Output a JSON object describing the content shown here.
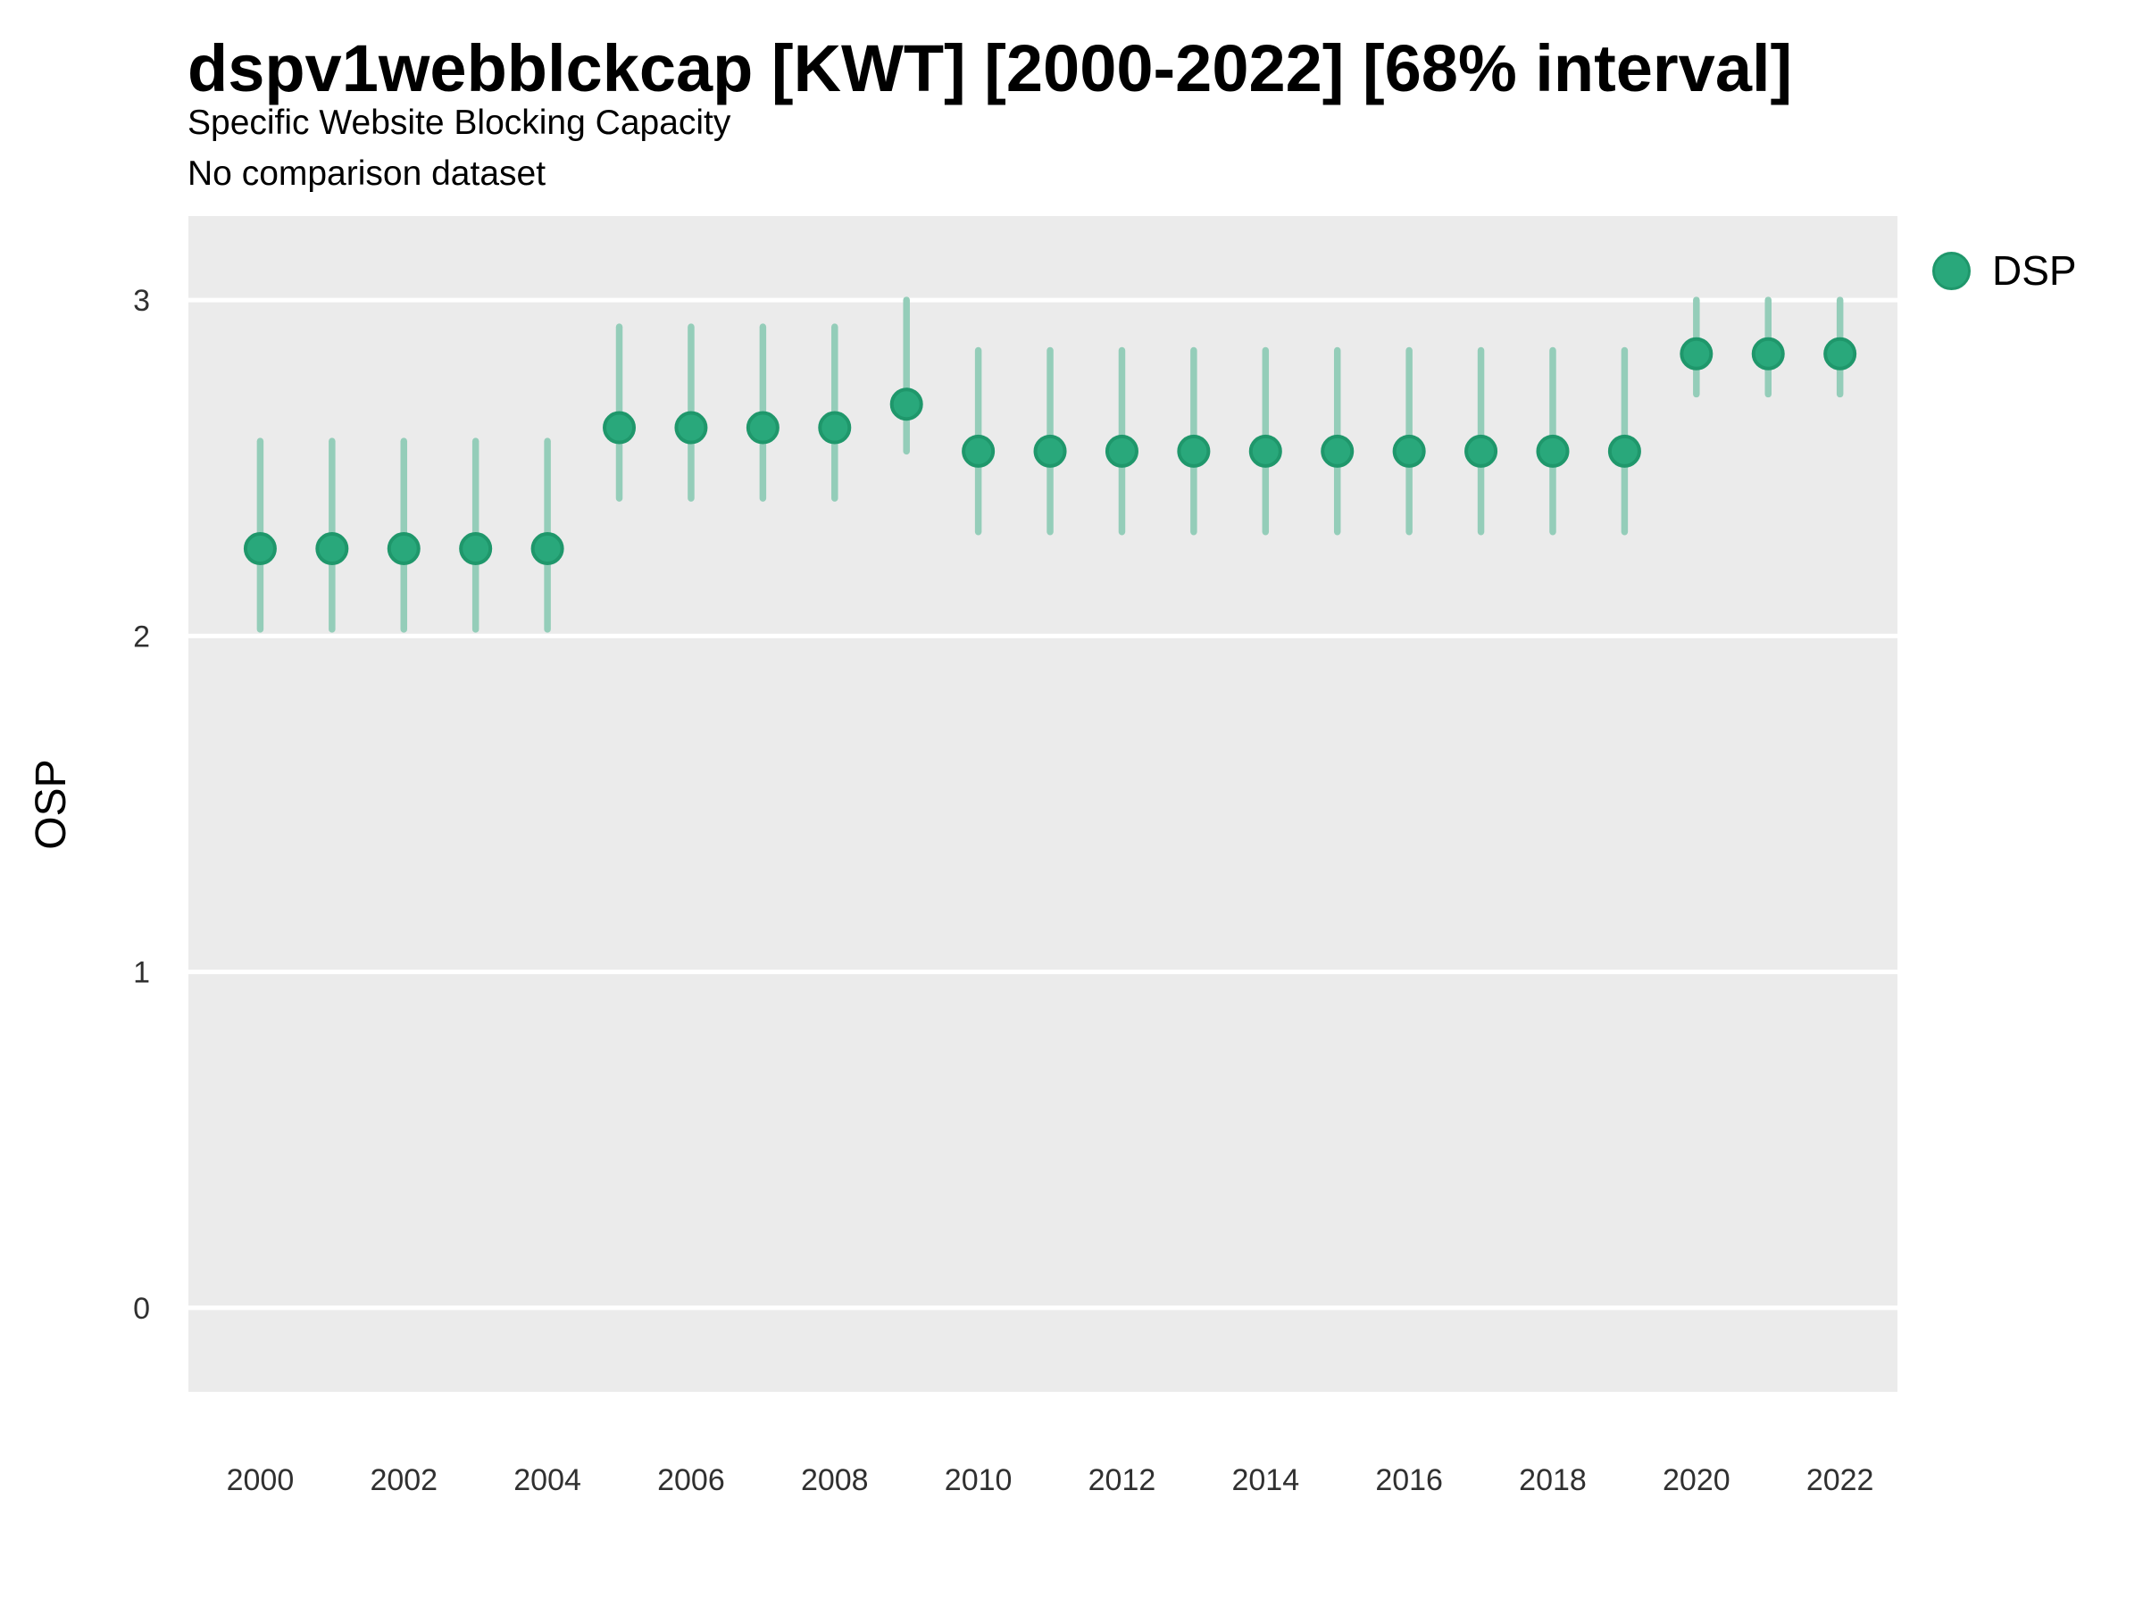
{
  "header": {
    "title": "dspv1webblckcap [KWT] [2000-2022] [68% interval]",
    "subtitle": "Specific Website Blocking Capacity",
    "subtitle2": "No comparison dataset"
  },
  "y_axis": {
    "title": "OSP"
  },
  "legend": {
    "label": "DSP",
    "position": "right"
  },
  "colors": {
    "background": "#ffffff",
    "panel": "#ebebeb",
    "grid": "#ffffff",
    "interval": "#94cdb9",
    "point": "#29a87b",
    "point_stroke": "#1f976b",
    "tick_label": "#303030"
  },
  "chart_data": {
    "type": "scatter",
    "variant": "pointrange",
    "title": "dspv1webblckcap [KWT] [2000-2022] [68% interval]",
    "subtitle": "Specific Website Blocking Capacity",
    "note": "No comparison dataset",
    "interval": "68%",
    "xlabel": "",
    "ylabel": "OSP",
    "grid": true,
    "legend_position": "right",
    "x_ticks": [
      2000,
      2002,
      2004,
      2006,
      2008,
      2010,
      2012,
      2014,
      2016,
      2018,
      2020,
      2022
    ],
    "y_ticks": [
      0,
      1,
      2,
      3
    ],
    "xlim": [
      1999.0,
      2022.8
    ],
    "ylim": [
      -0.25,
      3.25
    ],
    "series": [
      {
        "name": "DSP",
        "points": [
          {
            "x": 2000,
            "y": 2.26,
            "lo": 2.02,
            "hi": 2.58
          },
          {
            "x": 2001,
            "y": 2.26,
            "lo": 2.02,
            "hi": 2.58
          },
          {
            "x": 2002,
            "y": 2.26,
            "lo": 2.02,
            "hi": 2.58
          },
          {
            "x": 2003,
            "y": 2.26,
            "lo": 2.02,
            "hi": 2.58
          },
          {
            "x": 2004,
            "y": 2.26,
            "lo": 2.02,
            "hi": 2.58
          },
          {
            "x": 2005,
            "y": 2.62,
            "lo": 2.41,
            "hi": 2.92
          },
          {
            "x": 2006,
            "y": 2.62,
            "lo": 2.41,
            "hi": 2.92
          },
          {
            "x": 2007,
            "y": 2.62,
            "lo": 2.41,
            "hi": 2.92
          },
          {
            "x": 2008,
            "y": 2.62,
            "lo": 2.41,
            "hi": 2.92
          },
          {
            "x": 2009,
            "y": 2.69,
            "lo": 2.55,
            "hi": 3.0
          },
          {
            "x": 2010,
            "y": 2.55,
            "lo": 2.31,
            "hi": 2.85
          },
          {
            "x": 2011,
            "y": 2.55,
            "lo": 2.31,
            "hi": 2.85
          },
          {
            "x": 2012,
            "y": 2.55,
            "lo": 2.31,
            "hi": 2.85
          },
          {
            "x": 2013,
            "y": 2.55,
            "lo": 2.31,
            "hi": 2.85
          },
          {
            "x": 2014,
            "y": 2.55,
            "lo": 2.31,
            "hi": 2.85
          },
          {
            "x": 2015,
            "y": 2.55,
            "lo": 2.31,
            "hi": 2.85
          },
          {
            "x": 2016,
            "y": 2.55,
            "lo": 2.31,
            "hi": 2.85
          },
          {
            "x": 2017,
            "y": 2.55,
            "lo": 2.31,
            "hi": 2.85
          },
          {
            "x": 2018,
            "y": 2.55,
            "lo": 2.31,
            "hi": 2.85
          },
          {
            "x": 2019,
            "y": 2.55,
            "lo": 2.31,
            "hi": 2.85
          },
          {
            "x": 2020,
            "y": 2.84,
            "lo": 2.72,
            "hi": 3.0
          },
          {
            "x": 2021,
            "y": 2.84,
            "lo": 2.72,
            "hi": 3.0
          },
          {
            "x": 2022,
            "y": 2.84,
            "lo": 2.72,
            "hi": 3.0
          }
        ]
      }
    ]
  }
}
